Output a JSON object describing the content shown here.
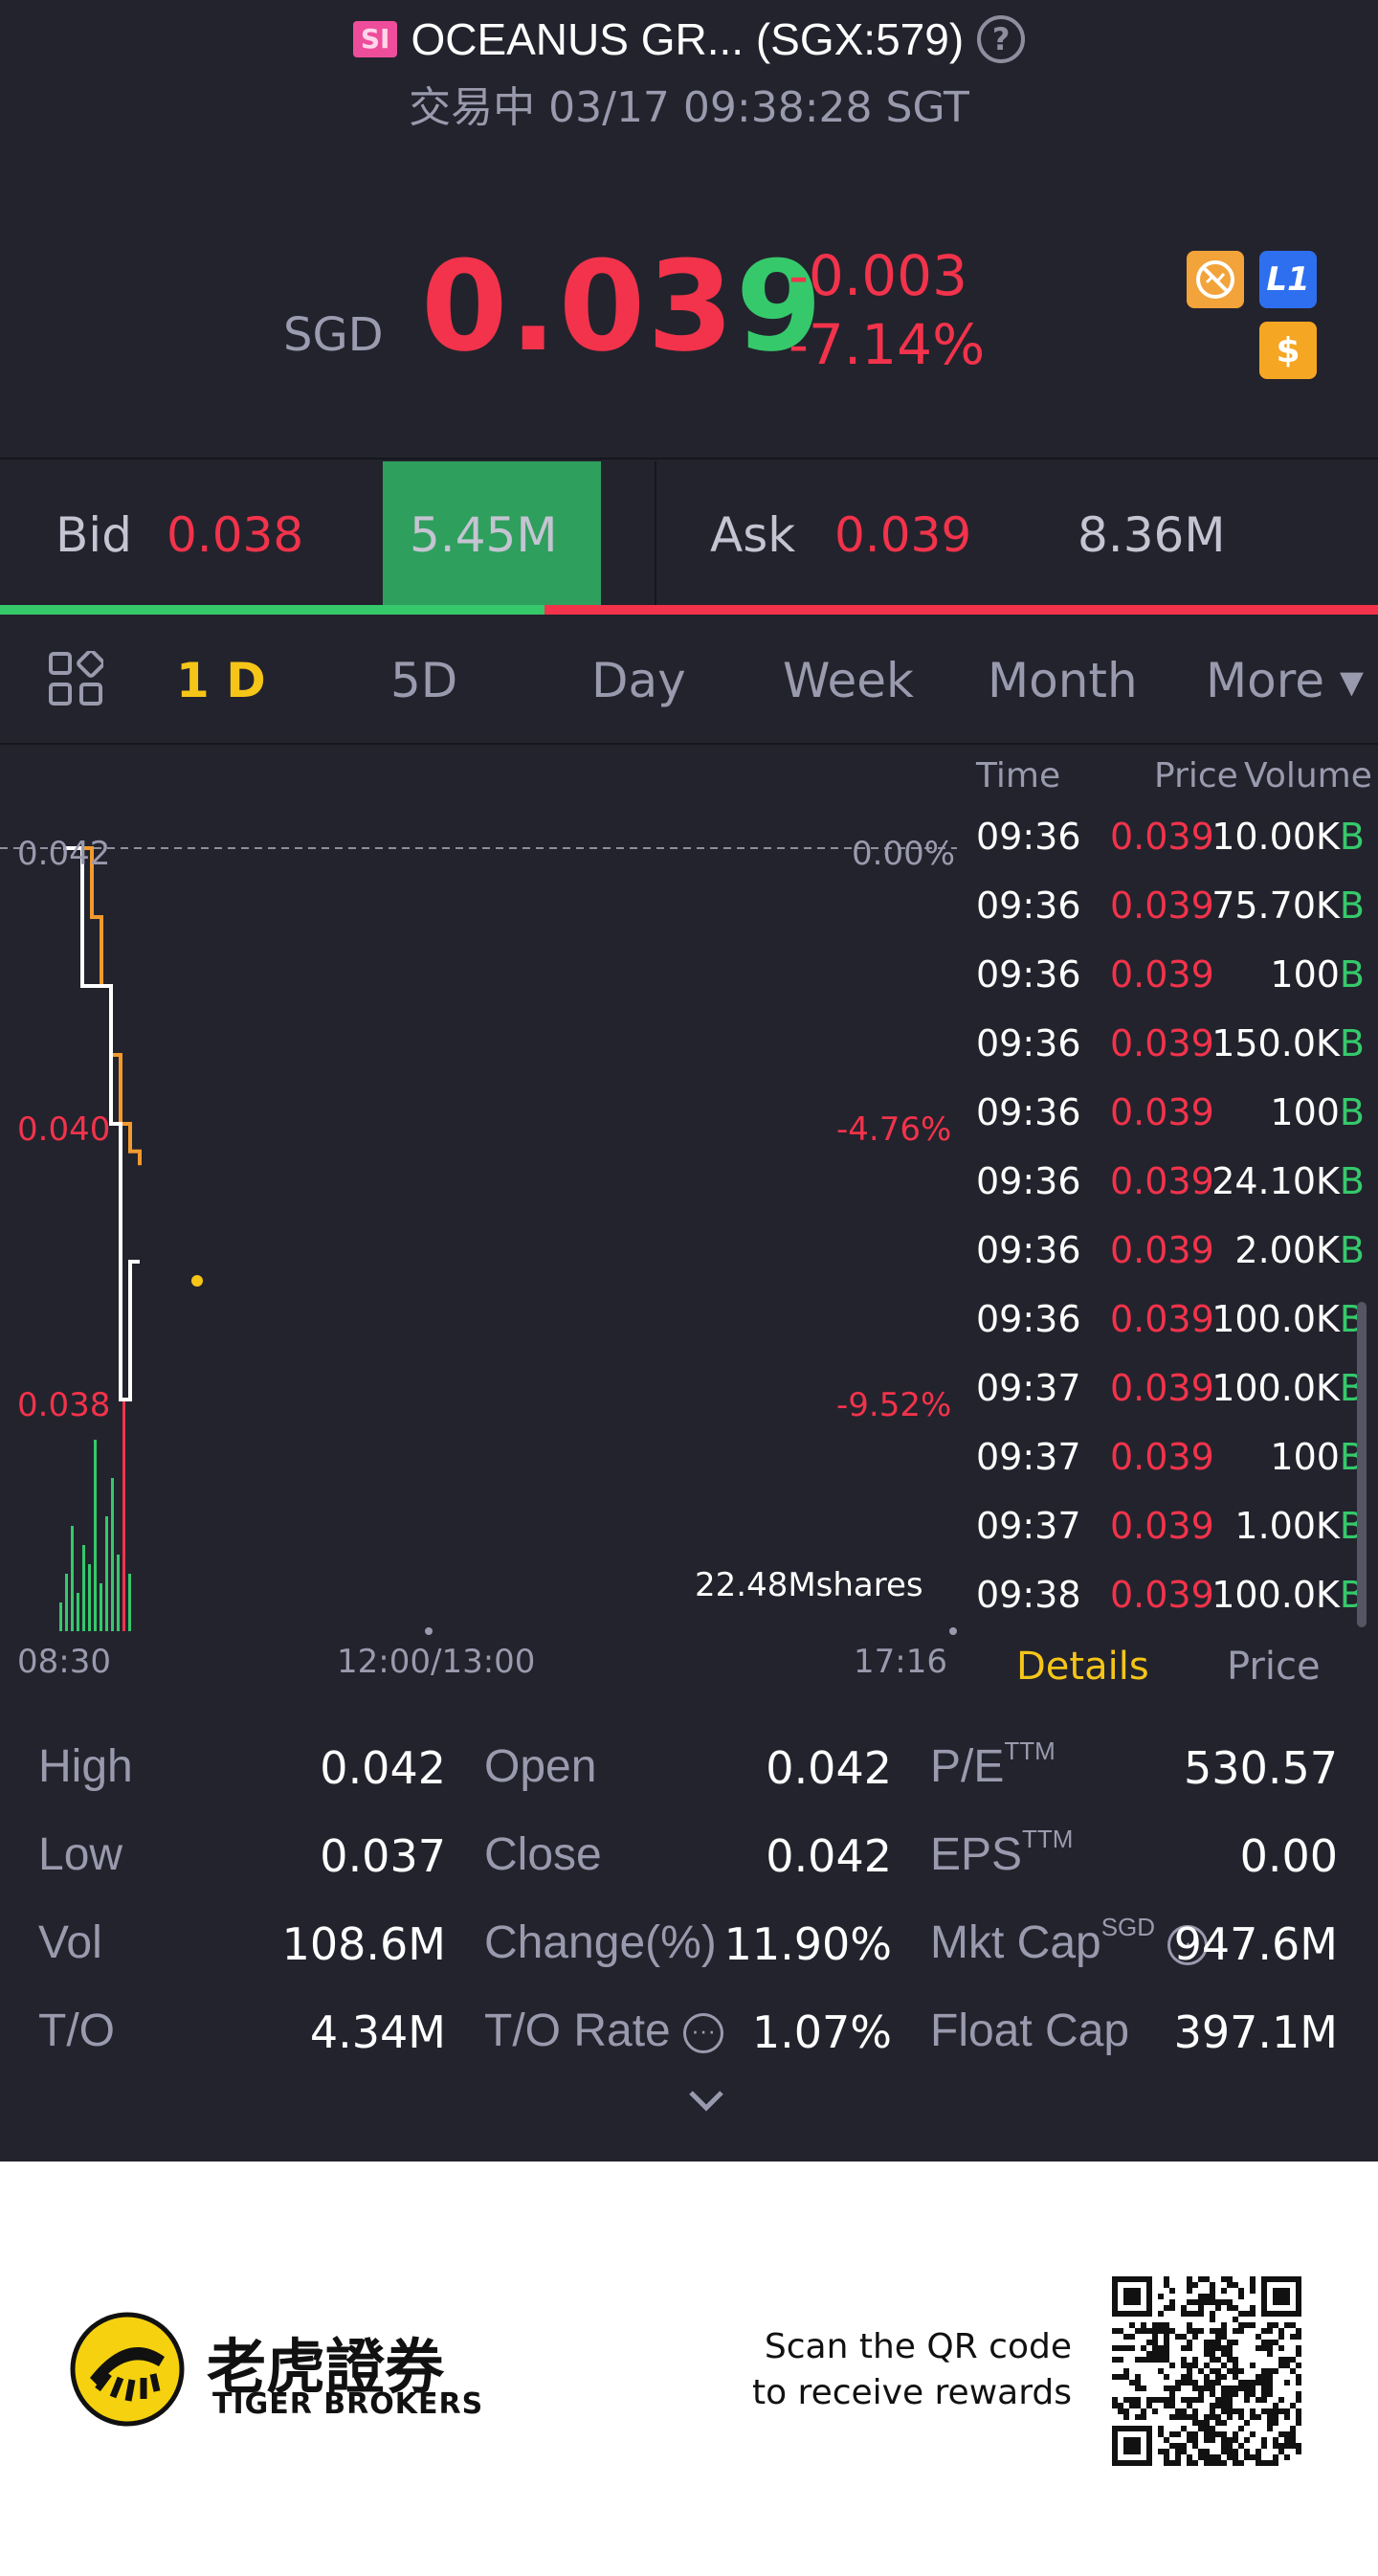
{
  "header": {
    "badge": "SI",
    "title": "OCEANUS GR... (SGX:579)",
    "status_line": "交易中 03/17 09:38:28 SGT"
  },
  "quote": {
    "currency": "SGD",
    "price_main": "0.03",
    "price_last_digit": "9",
    "change": "-0.003",
    "change_pct": "-7.14%",
    "badge_l1": "L1",
    "badge_dollar": "$"
  },
  "bidask": {
    "bid_label": "Bid",
    "bid_price": "0.038",
    "bid_volume": "5.45M",
    "ask_label": "Ask",
    "ask_price": "0.039",
    "ask_volume": "8.36M",
    "bid_ratio": 0.395
  },
  "tabs": [
    "1 D",
    "5D",
    "Day",
    "Week",
    "Month",
    "More ▾"
  ],
  "chart": {
    "price_labels": [
      "0.042",
      "0.040",
      "0.038"
    ],
    "pct_labels": [
      "0.00%",
      "-4.76%",
      "-9.52%"
    ],
    "volume_label": "22.48Mshares",
    "time_labels": [
      "08:30",
      "12:00/13:00",
      "17:16"
    ]
  },
  "chart_data": {
    "type": "line",
    "title": "",
    "xlabel": "",
    "ylabel": "",
    "ylim": [
      0.0363,
      0.042
    ],
    "x": [
      "08:30",
      "08:31",
      "08:32",
      "08:33",
      "08:34",
      "08:35",
      "08:36",
      "08:37",
      "08:38"
    ],
    "series": [
      {
        "values": [
          0.042,
          0.042,
          0.041,
          0.041,
          0.041,
          0.04,
          0.038,
          0.039,
          0.039
        ]
      },
      {
        "values": [
          0.042,
          0.042,
          0.042,
          0.0415,
          0.041,
          0.0405,
          0.04,
          0.0398,
          0.0397
        ]
      }
    ],
    "grid": false
  },
  "ticks": {
    "headers": [
      "Time",
      "Price",
      "Volume"
    ],
    "rows": [
      {
        "time": "09:36",
        "price": "0.039",
        "vol": "10.00K",
        "side": "B"
      },
      {
        "time": "09:36",
        "price": "0.039",
        "vol": "75.70K",
        "side": "B"
      },
      {
        "time": "09:36",
        "price": "0.039",
        "vol": "100",
        "side": "B"
      },
      {
        "time": "09:36",
        "price": "0.039",
        "vol": "150.0K",
        "side": "B"
      },
      {
        "time": "09:36",
        "price": "0.039",
        "vol": "100",
        "side": "B"
      },
      {
        "time": "09:36",
        "price": "0.039",
        "vol": "24.10K",
        "side": "B"
      },
      {
        "time": "09:36",
        "price": "0.039",
        "vol": "2.00K",
        "side": "B"
      },
      {
        "time": "09:36",
        "price": "0.039",
        "vol": "100.0K",
        "side": "B"
      },
      {
        "time": "09:37",
        "price": "0.039",
        "vol": "100.0K",
        "side": "B"
      },
      {
        "time": "09:37",
        "price": "0.039",
        "vol": "100",
        "side": "B"
      },
      {
        "time": "09:37",
        "price": "0.039",
        "vol": "1.00K",
        "side": "B"
      },
      {
        "time": "09:38",
        "price": "0.039",
        "vol": "100.0K",
        "side": "B"
      }
    ],
    "tab_details": "Details",
    "tab_price": "Price"
  },
  "stats": {
    "high_label": "High",
    "high": "0.042",
    "low_label": "Low",
    "low": "0.037",
    "vol_label": "Vol",
    "vol": "108.6M",
    "to_label": "T/O",
    "to": "4.34M",
    "open_label": "Open",
    "open": "0.042",
    "close_label": "Close",
    "close": "0.042",
    "change_label": "Change(%)",
    "change": "11.90%",
    "to_rate_label": "T/O Rate",
    "to_rate": "1.07%",
    "pe_label": "P/E",
    "pe_sup": "TTM",
    "pe": "530.57",
    "eps_label": "EPS",
    "eps_sup": "TTM",
    "eps": "0.00",
    "mktcap_label": "Mkt Cap",
    "mktcap_sup": "SGD",
    "mktcap": "947.6M",
    "floatcap_label": "Float Cap",
    "floatcap": "397.1M"
  },
  "footer": {
    "brand_cn": "老虎證券",
    "brand_en": "TIGER BROKERS",
    "scan_line1": "Scan the QR code",
    "scan_line2": "to receive rewards"
  },
  "colors": {
    "background": "#23232d",
    "up": "#35c96b",
    "down": "#f2334b",
    "accent": "#f5c518"
  }
}
